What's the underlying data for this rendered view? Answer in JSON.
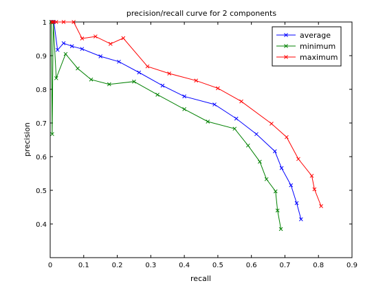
{
  "chart_data": {
    "type": "line",
    "title": "precision/recall curve for 2 components",
    "xlabel": "recall",
    "ylabel": "precision",
    "xlim": [
      0,
      0.9
    ],
    "ylim": [
      0.3,
      1.0
    ],
    "xticks": [
      0,
      0.1,
      0.2,
      0.3,
      0.4,
      0.5,
      0.6,
      0.7,
      0.8,
      0.9
    ],
    "xtick_labels": [
      "0",
      "0.1",
      "0.2",
      "0.3",
      "0.4",
      "0.5",
      "0.6",
      "0.7",
      "0.8",
      "0.9"
    ],
    "yticks": [
      0.4,
      0.5,
      0.6,
      0.7,
      0.8,
      0.9,
      1
    ],
    "ytick_labels": [
      "0.4",
      "0.5",
      "0.6",
      "0.7",
      "0.8",
      "0.9",
      "1"
    ],
    "grid": false,
    "legend_position": "top-right",
    "marker": "x",
    "series": [
      {
        "name": "average",
        "color": "#0000ff",
        "x": [
          0.003,
          0.007,
          0.011,
          0.022,
          0.04,
          0.065,
          0.095,
          0.15,
          0.205,
          0.265,
          0.335,
          0.4,
          0.49,
          0.555,
          0.615,
          0.67,
          0.69,
          0.718,
          0.735,
          0.748
        ],
        "y": [
          1.0,
          1.0,
          1.0,
          0.917,
          0.937,
          0.928,
          0.92,
          0.898,
          0.882,
          0.85,
          0.811,
          0.779,
          0.755,
          0.713,
          0.667,
          0.616,
          0.566,
          0.515,
          0.462,
          0.414
        ]
      },
      {
        "name": "minimum",
        "color": "#008000",
        "x": [
          0.003,
          0.006,
          0.009,
          0.018,
          0.046,
          0.082,
          0.122,
          0.176,
          0.25,
          0.32,
          0.4,
          0.47,
          0.55,
          0.59,
          0.625,
          0.645,
          0.672,
          0.678,
          0.688
        ],
        "y": [
          1.0,
          0.667,
          1.0,
          0.833,
          0.905,
          0.862,
          0.829,
          0.815,
          0.823,
          0.784,
          0.741,
          0.704,
          0.683,
          0.633,
          0.585,
          0.533,
          0.497,
          0.44,
          0.385
        ]
      },
      {
        "name": "maximum",
        "color": "#ff0000",
        "x": [
          0.005,
          0.009,
          0.018,
          0.04,
          0.07,
          0.095,
          0.135,
          0.18,
          0.218,
          0.29,
          0.355,
          0.435,
          0.5,
          0.57,
          0.66,
          0.705,
          0.74,
          0.78,
          0.788,
          0.808
        ],
        "y": [
          1.0,
          1.0,
          1.0,
          1.0,
          1.0,
          0.951,
          0.957,
          0.935,
          0.952,
          0.868,
          0.847,
          0.826,
          0.803,
          0.764,
          0.698,
          0.658,
          0.593,
          0.543,
          0.503,
          0.453
        ]
      }
    ]
  }
}
